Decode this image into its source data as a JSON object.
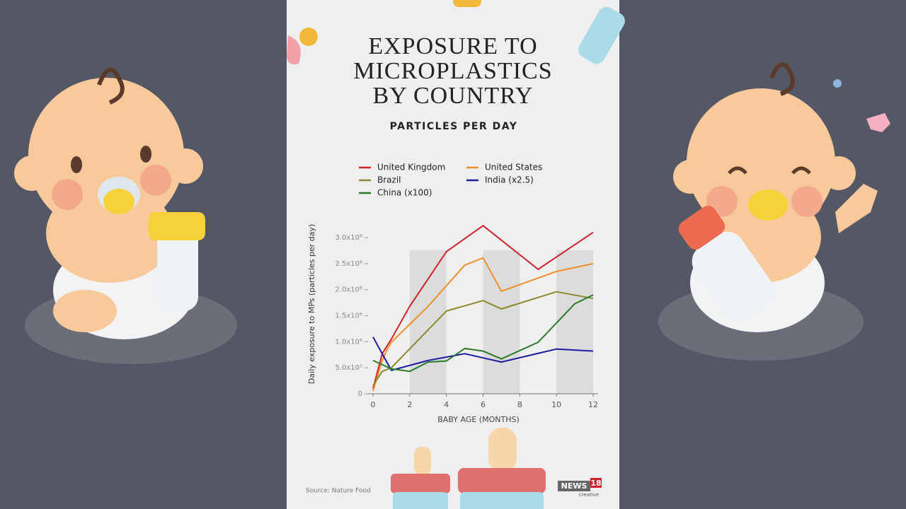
{
  "chart_data": {
    "type": "line",
    "title": "EXPOSURE TO MICROPLASTICS BY COUNTRY",
    "subtitle": "PARTICLES PER DAY",
    "x_label": "BABY AGE (MONTHS)",
    "y_label": "Daily exposure to MPs (particles per day)",
    "source": "Source: Nature Food",
    "brand": [
      "NEWS",
      "18",
      "creative"
    ],
    "xlim": [
      0,
      12
    ],
    "xticks": [
      0,
      2,
      4,
      6,
      8,
      10,
      12
    ],
    "ylim": [
      0,
      3300000
    ],
    "yticks": [
      0,
      {
        "value": 500000,
        "label": "5.0x10⁵"
      },
      {
        "value": 1000000,
        "label": "1.0x10⁶"
      },
      {
        "value": 1500000,
        "label": "1.5x10⁶"
      },
      {
        "value": 2000000,
        "label": "2.0x10⁶"
      },
      {
        "value": 2500000,
        "label": "2.5x10⁶"
      },
      {
        "value": 3000000,
        "label": "3.0x10⁶"
      }
    ],
    "series": [
      {
        "name": "United Kingdom",
        "color": "#d0202a",
        "x": [
          0,
          0.5,
          1,
          2,
          4,
          6,
          9,
          12
        ],
        "values": [
          100000,
          770000,
          1050000,
          1680000,
          2730000,
          3230000,
          2390000,
          3100000
        ]
      },
      {
        "name": "United States",
        "color": "#ef8f2a",
        "x": [
          0,
          0.5,
          0.8,
          1,
          3,
          5,
          6,
          7,
          10,
          12
        ],
        "values": [
          50000,
          640000,
          870000,
          990000,
          1680000,
          2470000,
          2610000,
          1970000,
          2350000,
          2500000
        ]
      },
      {
        "name": "Brazil",
        "color": "#8a8a2a",
        "x": [
          0,
          0.5,
          1,
          4,
          6,
          7,
          10,
          12
        ],
        "values": [
          160000,
          430000,
          500000,
          1590000,
          1790000,
          1630000,
          1960000,
          1830000
        ]
      },
      {
        "name": "India (x2.5)",
        "color": "#1c1ca0",
        "x": [
          0,
          1,
          3,
          5,
          7,
          10,
          12
        ],
        "values": [
          1090000,
          450000,
          640000,
          770000,
          610000,
          860000,
          820000
        ]
      },
      {
        "name": "China (x100)",
        "color": "#2a7a2a",
        "x": [
          0,
          1,
          2,
          3,
          4,
          5,
          6,
          7,
          9,
          11,
          12
        ],
        "values": [
          640000,
          480000,
          430000,
          610000,
          630000,
          870000,
          820000,
          670000,
          990000,
          1730000,
          1900000
        ]
      }
    ]
  }
}
